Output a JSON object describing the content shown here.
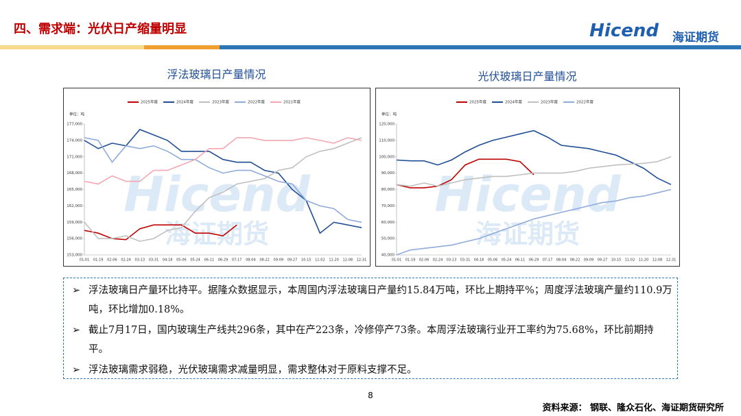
{
  "header": {
    "title": "四、需求端：光伏日产缩量明显",
    "logo_brand": "Hicend",
    "logo_cn": "海证期货"
  },
  "chart_data": [
    {
      "type": "line",
      "title": "浮法玻璃日产量情况",
      "unit_label": "单位：吨",
      "watermark_brand": "Hicend",
      "watermark_cn": "海证期货",
      "categories": [
        "01-01",
        "01-19",
        "02-06",
        "02-24",
        "03-13",
        "03-31",
        "04-18",
        "05-06",
        "05-24",
        "06-11",
        "06-29",
        "07-17",
        "08-04",
        "08-22",
        "09-09",
        "09-27",
        "10-15",
        "11-02",
        "11-20",
        "12-08",
        "12-31"
      ],
      "series": [
        {
          "name": "2025年度",
          "color": "#c00000",
          "values": [
            157500,
            157000,
            156000,
            155800,
            157800,
            158500,
            158500,
            158500,
            157000,
            157000,
            156500,
            158500,
            null,
            null,
            null,
            null,
            null,
            null,
            null,
            null,
            null
          ]
        },
        {
          "name": "2024年度",
          "color": "#1f4e96",
          "values": [
            174000,
            172500,
            173500,
            173000,
            176000,
            175000,
            174000,
            172000,
            172000,
            172000,
            170500,
            170000,
            170000,
            168500,
            168000,
            165000,
            163000,
            157000,
            159000,
            158500,
            158000
          ]
        },
        {
          "name": "2023年度",
          "color": "#bfbfbf",
          "values": [
            159000,
            156000,
            156000,
            156500,
            155500,
            156000,
            157500,
            158000,
            161000,
            163500,
            164500,
            166000,
            166500,
            167000,
            168500,
            169000,
            171000,
            172000,
            172500,
            173500,
            174500
          ]
        },
        {
          "name": "2022年度",
          "color": "#8faadc",
          "values": [
            174500,
            174000,
            170000,
            173000,
            172500,
            173000,
            172000,
            170500,
            170500,
            169000,
            168000,
            168500,
            168500,
            167500,
            166500,
            166000,
            163000,
            162000,
            161500,
            159500,
            159000
          ]
        },
        {
          "name": "2021年度",
          "color": "#f4a6b2",
          "values": [
            166500,
            166000,
            167500,
            166500,
            166500,
            168500,
            168500,
            169500,
            170500,
            172500,
            172500,
            174500,
            174500,
            174000,
            174000,
            174000,
            174500,
            174000,
            173500,
            174500,
            174000
          ]
        }
      ],
      "ylim": [
        153000,
        177000
      ],
      "yticks": [
        {
          "value": 153000,
          "label": "153,000"
        },
        {
          "value": 156000,
          "label": "156,000"
        },
        {
          "value": 159000,
          "label": "159,000"
        },
        {
          "value": 162000,
          "label": "162,000"
        },
        {
          "value": 165000,
          "label": "165,000"
        },
        {
          "value": 168000,
          "label": "168,000"
        },
        {
          "value": 171000,
          "label": "171,000"
        },
        {
          "value": 174000,
          "label": "174,000"
        },
        {
          "value": 177000,
          "label": "177,000"
        }
      ],
      "grid": false
    },
    {
      "type": "line",
      "title": "光伏玻璃日产量情况",
      "unit_label": "单位：吨",
      "watermark_brand": "Hicend",
      "watermark_cn": "海证期货",
      "categories": [
        "01-01",
        "01-19",
        "02-06",
        "02-24",
        "03-13",
        "03-31",
        "04-18",
        "05-06",
        "05-24",
        "06-11",
        "06-29",
        "07-17",
        "08-04",
        "08-22",
        "09-09",
        "09-27",
        "10-15",
        "11-02",
        "11-20",
        "12-08",
        "12-31"
      ],
      "series": [
        {
          "name": "2025年度",
          "color": "#c00000",
          "values": [
            83000,
            81000,
            81000,
            82000,
            86000,
            95000,
            98500,
            98500,
            98500,
            97000,
            89000,
            null,
            null,
            null,
            null,
            null,
            null,
            null,
            null,
            null,
            null
          ]
        },
        {
          "name": "2024年度",
          "color": "#1f4e96",
          "values": [
            98000,
            97500,
            97500,
            95000,
            98000,
            103000,
            107000,
            110000,
            112000,
            114000,
            116000,
            112000,
            107000,
            106000,
            105000,
            103000,
            101000,
            97000,
            93000,
            87000,
            83000
          ]
        },
        {
          "name": "2023年度",
          "color": "#bfbfbf",
          "values": [
            83000,
            82000,
            84000,
            82000,
            84000,
            86000,
            87000,
            88000,
            88000,
            89000,
            90000,
            90000,
            90000,
            91000,
            93000,
            94000,
            95000,
            95500,
            96000,
            97000,
            100000
          ]
        },
        {
          "name": "2022年度",
          "color": "#8faadc",
          "values": [
            40000,
            43000,
            44000,
            45000,
            46000,
            48000,
            50000,
            53000,
            56000,
            59000,
            62000,
            64000,
            66000,
            68000,
            70000,
            72000,
            73000,
            75000,
            76000,
            78000,
            80000
          ]
        }
      ],
      "ylim": [
        40000,
        120000
      ],
      "yticks": [
        {
          "value": 40000,
          "label": "40,000"
        },
        {
          "value": 50000,
          "label": "50,000"
        },
        {
          "value": 60000,
          "label": "60,000"
        },
        {
          "value": 70000,
          "label": "70,000"
        },
        {
          "value": 80000,
          "label": "80,000"
        },
        {
          "value": 90000,
          "label": "90,000"
        },
        {
          "value": 100000,
          "label": "100,000"
        },
        {
          "value": 110000,
          "label": "110,000"
        },
        {
          "value": 120000,
          "label": "120,000"
        }
      ],
      "grid": false
    }
  ],
  "notes": [
    "浮法玻璃日产量环比持平。据隆众数据显示，本周国内浮法玻璃日产量约15.84万吨，环比上期持平%；周度浮法玻璃产量约110.9万吨，环比增加0.18%。",
    "截止7月17日，国内玻璃生产线共296条，其中在产223条，冷修停产73条。本周浮法玻璃行业开工率约为75.68%，环比前期持平。",
    "浮法玻璃需求弱稳，光伏玻璃需求减量明显，需求整体对于原料支撑不足。"
  ],
  "footer": {
    "page": "8",
    "source": "资料来源：  钢联、隆众石化、海证期货研究所"
  }
}
